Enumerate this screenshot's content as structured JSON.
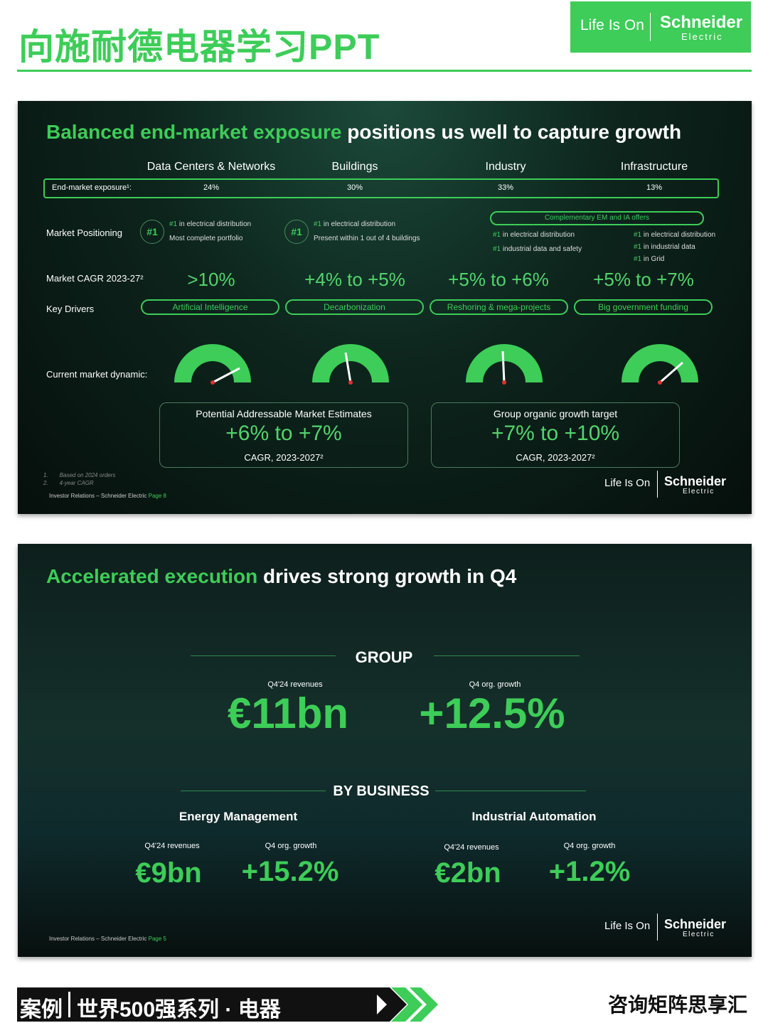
{
  "header": {
    "title": "向施耐德电器学习PPT",
    "logo_tagline": "Life Is On",
    "logo_brand": "Schneider",
    "logo_sub": "Electric"
  },
  "slide1": {
    "title_highlight": "Balanced end-market exposure",
    "title_rest": "positions us well to capture growth",
    "markets": [
      "Data Centers & Networks",
      "Buildings",
      "Industry",
      "Infrastructure"
    ],
    "exposure_label": "End-market exposure¹:",
    "exposure": [
      "24%",
      "30%",
      "33%",
      "13%"
    ],
    "positioning_label": "Market Positioning",
    "positioning": [
      {
        "badge": "#1",
        "lines": [
          {
            "rank": "#1",
            "text": "in electrical distribution"
          },
          {
            "text": "Most complete portfolio"
          }
        ]
      },
      {
        "badge": "#1",
        "lines": [
          {
            "rank": "#1",
            "text": "in electrical distribution"
          },
          {
            "text": "Present within 1 out of 4 buildings"
          }
        ]
      },
      {
        "lines": [
          {
            "rank": "#1",
            "text": "in electrical distribution"
          },
          {
            "rank": "#1",
            "text": "industrial data and safety"
          }
        ]
      },
      {
        "lines": [
          {
            "rank": "#1",
            "text": "in electrical distribution"
          },
          {
            "rank": "#1",
            "text": "in industrial data"
          },
          {
            "rank": "#1",
            "text": "in Grid"
          }
        ]
      }
    ],
    "complementary": "Complementary EM and IA offers",
    "cagr_label": "Market CAGR 2023-27²",
    "cagr": [
      ">10%",
      "+4% to +5%",
      "+5% to +6%",
      "+5% to +7%"
    ],
    "drivers_label": "Key Drivers",
    "drivers": [
      "Artificial Intelligence",
      "Decarbonization",
      "Reshoring & mega-projects",
      "Big government funding"
    ],
    "dynamic_label": "Current market dynamic:",
    "boxes": [
      {
        "title": "Potential Addressable Market Estimates",
        "value": "+6% to +7%",
        "note": "CAGR, 2023-2027²"
      },
      {
        "title": "Group organic growth target",
        "value": "+7% to +10%",
        "note": "CAGR, 2023-2027²"
      }
    ],
    "footnotes": [
      {
        "num": "1.",
        "text": "Based on 2024 orders"
      },
      {
        "num": "2.",
        "text": "4-year CAGR"
      }
    ],
    "footer": {
      "source": "Investor Relations – Schneider Electric",
      "page": "Page 8"
    }
  },
  "slide2": {
    "title_highlight": "Accelerated execution",
    "title_rest": "drives strong growth in Q4",
    "group_heading": "GROUP",
    "group": [
      {
        "label": "Q4'24 revenues",
        "value": "€11bn"
      },
      {
        "label": "Q4 org. growth",
        "value": "+12.5%"
      }
    ],
    "business_heading": "BY BUSINESS",
    "businesses": [
      {
        "name": "Energy Management",
        "metrics": [
          {
            "label": "Q4'24 revenues",
            "value": "€9bn"
          },
          {
            "label": "Q4 org. growth",
            "value": "+15.2%"
          }
        ]
      },
      {
        "name": "Industrial Automation",
        "metrics": [
          {
            "label": "Q4'24 revenues",
            "value": "€2bn"
          },
          {
            "label": "Q4 org. growth",
            "value": "+1.2%"
          }
        ]
      }
    ],
    "footer": {
      "source": "Investor Relations – Schneider Electric",
      "page": "Page 5"
    }
  },
  "banner": {
    "left": "案例",
    "right": "世界500强系列 · 电器",
    "brand": "咨询矩阵思享汇"
  }
}
